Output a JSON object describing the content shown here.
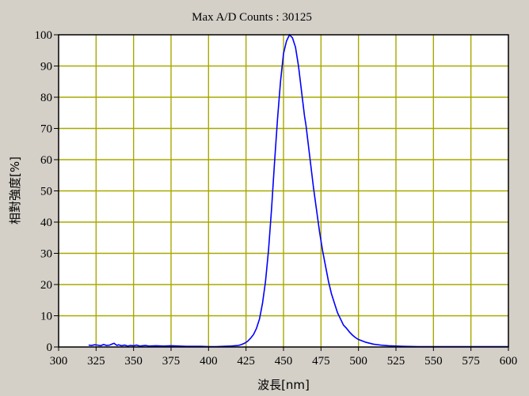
{
  "chart_data": {
    "type": "line",
    "title": "Max A/D Counts : 30125",
    "xlabel": "波長[nm]",
    "ylabel": "相對強度[%]",
    "xlim": [
      300,
      600
    ],
    "ylim": [
      0,
      100
    ],
    "xticks": [
      300,
      325,
      350,
      375,
      400,
      425,
      450,
      475,
      500,
      525,
      550,
      575,
      600
    ],
    "yticks": [
      0,
      10,
      20,
      30,
      40,
      50,
      60,
      70,
      80,
      90,
      100
    ],
    "xtick_labels": [
      "300",
      "325",
      "350",
      "375",
      "400",
      "425",
      "450",
      "475",
      "500",
      "525",
      "550",
      "575",
      "600"
    ],
    "ytick_labels": [
      "0",
      "10",
      "20",
      "30",
      "40",
      "50",
      "60",
      "70",
      "80",
      "90",
      "100"
    ],
    "grid": true,
    "colors": {
      "background": "#d4d0c8",
      "plot_area": "#ffffff",
      "grid": "#a8a800",
      "line": "#0000ff",
      "axis": "#000000"
    },
    "series": [
      {
        "values_x": [
          320,
          322,
          324,
          326,
          328,
          330,
          332,
          334,
          336,
          337,
          338,
          339,
          340,
          342,
          344,
          346,
          348,
          350,
          352,
          354,
          356,
          358,
          360,
          365,
          370,
          375,
          380,
          385,
          390,
          395,
          400,
          405,
          410,
          415,
          420,
          422,
          424,
          426,
          428,
          430,
          432,
          434,
          436,
          438,
          440,
          442,
          444,
          446,
          448,
          450,
          452,
          454,
          456,
          458,
          460,
          461,
          462,
          463,
          464,
          465,
          466,
          468,
          470,
          472,
          474,
          476,
          478,
          480,
          482,
          484,
          486,
          488,
          490,
          492,
          494,
          496,
          498,
          500,
          505,
          510,
          515,
          520,
          525,
          530,
          540,
          550,
          560,
          570,
          580,
          590,
          600
        ],
        "values_y": [
          0.6,
          0.5,
          0.7,
          0.6,
          0.4,
          0.8,
          0.5,
          0.6,
          1.0,
          1.2,
          0.8,
          0.5,
          0.7,
          0.4,
          0.6,
          0.3,
          0.5,
          0.4,
          0.6,
          0.3,
          0.4,
          0.5,
          0.3,
          0.4,
          0.3,
          0.4,
          0.3,
          0.2,
          0.2,
          0.2,
          0.1,
          0.1,
          0.2,
          0.3,
          0.5,
          0.8,
          1.2,
          1.8,
          2.8,
          4.0,
          6.0,
          9.0,
          14.0,
          21.0,
          31.0,
          44.0,
          59.0,
          73.0,
          85.0,
          94.0,
          98.0,
          100.0,
          99.0,
          96.0,
          90.0,
          86.0,
          82.0,
          78.0,
          74.0,
          71.0,
          67.0,
          59.0,
          51.0,
          44.0,
          37.0,
          31.0,
          26.0,
          21.0,
          17.0,
          14.0,
          11.0,
          9.0,
          7.0,
          6.0,
          4.8,
          3.8,
          3.0,
          2.4,
          1.5,
          0.9,
          0.6,
          0.4,
          0.3,
          0.2,
          0.1,
          0.1,
          0.1,
          0.1,
          0.1,
          0.1,
          0.1
        ]
      }
    ]
  }
}
